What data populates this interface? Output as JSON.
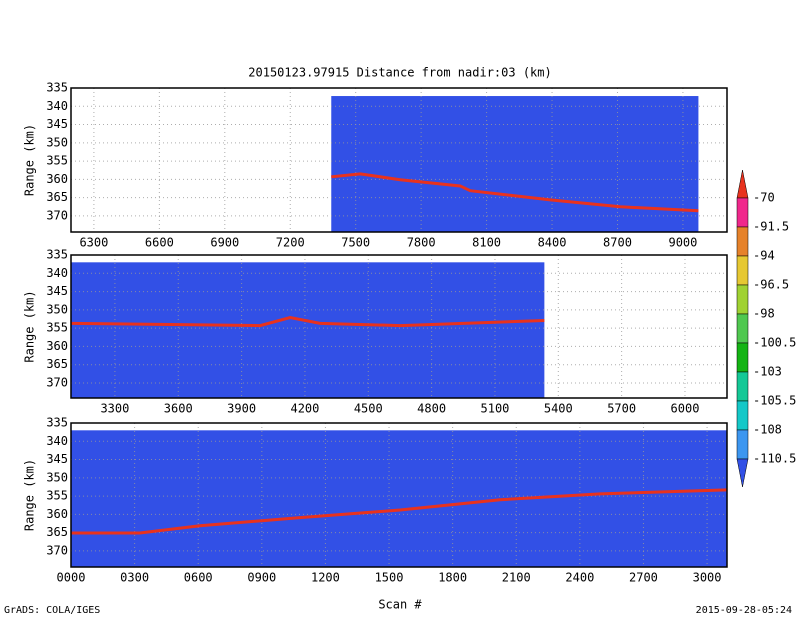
{
  "chart_data": [
    {
      "type": "line",
      "title": "20150123.97915   Distance from nadir:03 (km)",
      "ylabel": "Range (km)",
      "xlim": [
        6195,
        9202
      ],
      "ylim": [
        335,
        374.4
      ],
      "xticks": [
        6300,
        6600,
        6900,
        7200,
        7500,
        7800,
        8100,
        8400,
        8700,
        9000
      ],
      "yticks": [
        335,
        340,
        345,
        350,
        355,
        360,
        365,
        370
      ],
      "coverage_x": [
        7388,
        9071
      ],
      "coverage_top": 337.2,
      "coverage_color": "#3250e6",
      "x": [
        7388,
        7521,
        7704,
        7979,
        8025,
        8392,
        8713,
        9071
      ],
      "values": [
        359.3,
        358.5,
        360.1,
        361.8,
        363.1,
        365.6,
        367.5,
        368.6
      ],
      "color": "#e8321e",
      "grid": true
    },
    {
      "type": "line",
      "ylabel": "Range (km)",
      "xlim": [
        3092,
        6199
      ],
      "ylim": [
        335,
        374.1
      ],
      "xticks": [
        3300,
        3600,
        3900,
        4200,
        4500,
        4800,
        5100,
        5400,
        5700,
        6000
      ],
      "yticks": [
        335,
        340,
        345,
        350,
        355,
        360,
        365,
        370
      ],
      "coverage_x": [
        3092,
        5334
      ],
      "coverage_top": 337,
      "coverage_color": "#3250e6",
      "x": [
        3092,
        3988,
        4130,
        4272,
        4651,
        5334
      ],
      "values": [
        353.7,
        354.3,
        352.1,
        353.7,
        354.3,
        352.9
      ],
      "color": "#e8321e",
      "grid": true
    },
    {
      "type": "line",
      "ylabel": "Range (km)",
      "xlabel": "Scan #",
      "xlim": [
        0,
        3094
      ],
      "ylim": [
        335,
        374.4
      ],
      "xticks": [
        {
          "value": 0,
          "label": "0000"
        },
        {
          "value": 300,
          "label": "0300"
        },
        {
          "value": 600,
          "label": "0600"
        },
        {
          "value": 900,
          "label": "0900"
        },
        1200,
        1500,
        1800,
        2100,
        2400,
        2700,
        3000
      ],
      "yticks": [
        335,
        340,
        345,
        350,
        355,
        360,
        365,
        370
      ],
      "coverage_x": [
        0,
        3094
      ],
      "coverage_top": 337,
      "coverage_color": "#3250e6",
      "x": [
        0,
        325,
        608,
        1080,
        1552,
        2024,
        2495,
        3094
      ],
      "values": [
        365.1,
        365.1,
        363.1,
        360.9,
        358.8,
        356.0,
        354.4,
        353.3
      ],
      "color": "#e8321e",
      "grid": true
    },
    {
      "type": "colorbar",
      "levels": [
        -70,
        -91.5,
        -94,
        -96.5,
        -98,
        -100.5,
        -103,
        -105.5,
        -108,
        -110.5
      ],
      "colors": [
        "#e8321e",
        "#f0288c",
        "#e6822a",
        "#e6c832",
        "#a0d232",
        "#50c850",
        "#14b414",
        "#14c896",
        "#14c8c8",
        "#3c96f0",
        "#3250e6"
      ]
    }
  ],
  "footer": {
    "left": "GrADS: COLA/IGES",
    "right": "2015-09-28-05:24"
  }
}
